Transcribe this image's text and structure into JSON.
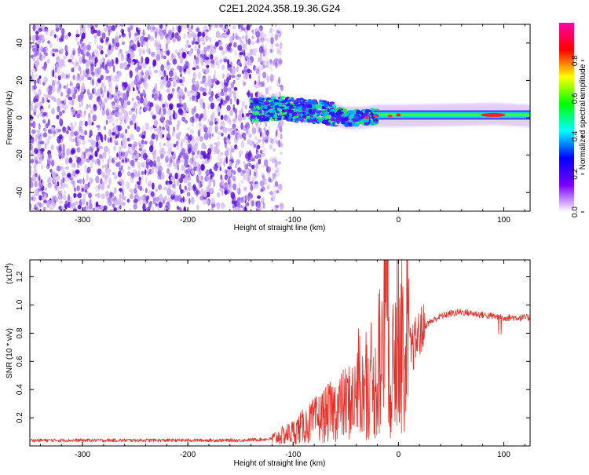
{
  "page": {
    "title": "C2E1.2024.358.19.36.G24"
  },
  "colors": {
    "dot_dark": "#5a10d8",
    "dot_mid": "#9a66ee",
    "dot_light": "#d2b8f5",
    "snr_line": "#e8312a",
    "axis": "#000000"
  },
  "chart_data": [
    {
      "type": "heatmap",
      "title": "C2E1.2024.358.19.36.G24",
      "xlabel": "Height of straight line (km)",
      "ylabel": "Frequency (Hz)",
      "xlim": [
        -350,
        125
      ],
      "ylim": [
        -50,
        50
      ],
      "x_ticks": [
        -300,
        -200,
        -100,
        0,
        100
      ],
      "x_tick_labels": [
        "-300",
        "-200",
        "-100",
        "0",
        "100"
      ],
      "y_ticks": [
        -40,
        -20,
        0,
        20,
        40
      ],
      "y_tick_labels": [
        "-40",
        "-20",
        "0",
        "20",
        "40"
      ],
      "noise_region_x": [
        -350,
        -115
      ],
      "signal_ridge": [
        {
          "x": -140,
          "y": 4
        },
        {
          "x": -110,
          "y": 5
        },
        {
          "x": -90,
          "y": 4
        },
        {
          "x": -70,
          "y": 3
        },
        {
          "x": -50,
          "y": 0
        },
        {
          "x": -35,
          "y": 0
        },
        {
          "x": -20,
          "y": 1
        },
        {
          "x": 0,
          "y": 1
        },
        {
          "x": 50,
          "y": 1.5
        },
        {
          "x": 90,
          "y": 2
        },
        {
          "x": 125,
          "y": 1
        }
      ],
      "colorbar": {
        "label": "Normalized spectral amplitude",
        "range": [
          0,
          1
        ],
        "ticks": [
          0.0,
          0.2,
          0.4,
          0.6,
          0.8
        ],
        "tick_labels": [
          "0.0",
          "0.2",
          "0.4",
          "0.6",
          "0.8"
        ],
        "stops": [
          "#ffffff",
          "#7a00ff",
          "#0000ff",
          "#00ffff",
          "#00ff00",
          "#ffff00",
          "#ff0000",
          "#ff00aa"
        ]
      }
    },
    {
      "type": "line",
      "xlabel": "Height of straight line (km)",
      "ylabel": "SNR (10 * v/v)",
      "y_scale_label": "(x10",
      "y_scale_exp": "4",
      "y_scale_close": ")",
      "xlim": [
        -350,
        125
      ],
      "ylim": [
        0,
        1.32
      ],
      "x_ticks": [
        -300,
        -200,
        -100,
        0,
        100
      ],
      "x_tick_labels": [
        "-300",
        "-200",
        "-100",
        "0",
        "100"
      ],
      "y_ticks": [
        0.2,
        0.4,
        0.6,
        0.8,
        1.0,
        1.2
      ],
      "y_tick_labels": [
        "0.2",
        "0.4",
        "0.6",
        "0.8",
        "1.0",
        "1.2"
      ],
      "series": [
        {
          "x": [
            -350,
            -300,
            -250,
            -200,
            -150,
            -120,
            -100,
            -90,
            -80,
            -70,
            -60,
            -50,
            -40,
            -30,
            -25,
            -20,
            -15,
            -12,
            -10,
            -8,
            -5,
            0,
            5,
            10,
            15,
            20,
            25,
            30,
            40,
            50,
            60,
            70,
            80,
            90,
            100,
            110,
            125
          ],
          "y": [
            0.04,
            0.04,
            0.04,
            0.04,
            0.04,
            0.05,
            0.1,
            0.14,
            0.18,
            0.22,
            0.26,
            0.3,
            0.34,
            0.4,
            0.35,
            0.45,
            0.6,
            0.95,
            1.3,
            0.4,
            0.55,
            0.6,
            0.62,
            0.65,
            0.72,
            0.8,
            0.85,
            0.88,
            0.92,
            0.94,
            0.95,
            0.94,
            0.93,
            0.92,
            0.91,
            0.91,
            0.91
          ]
        }
      ]
    }
  ]
}
